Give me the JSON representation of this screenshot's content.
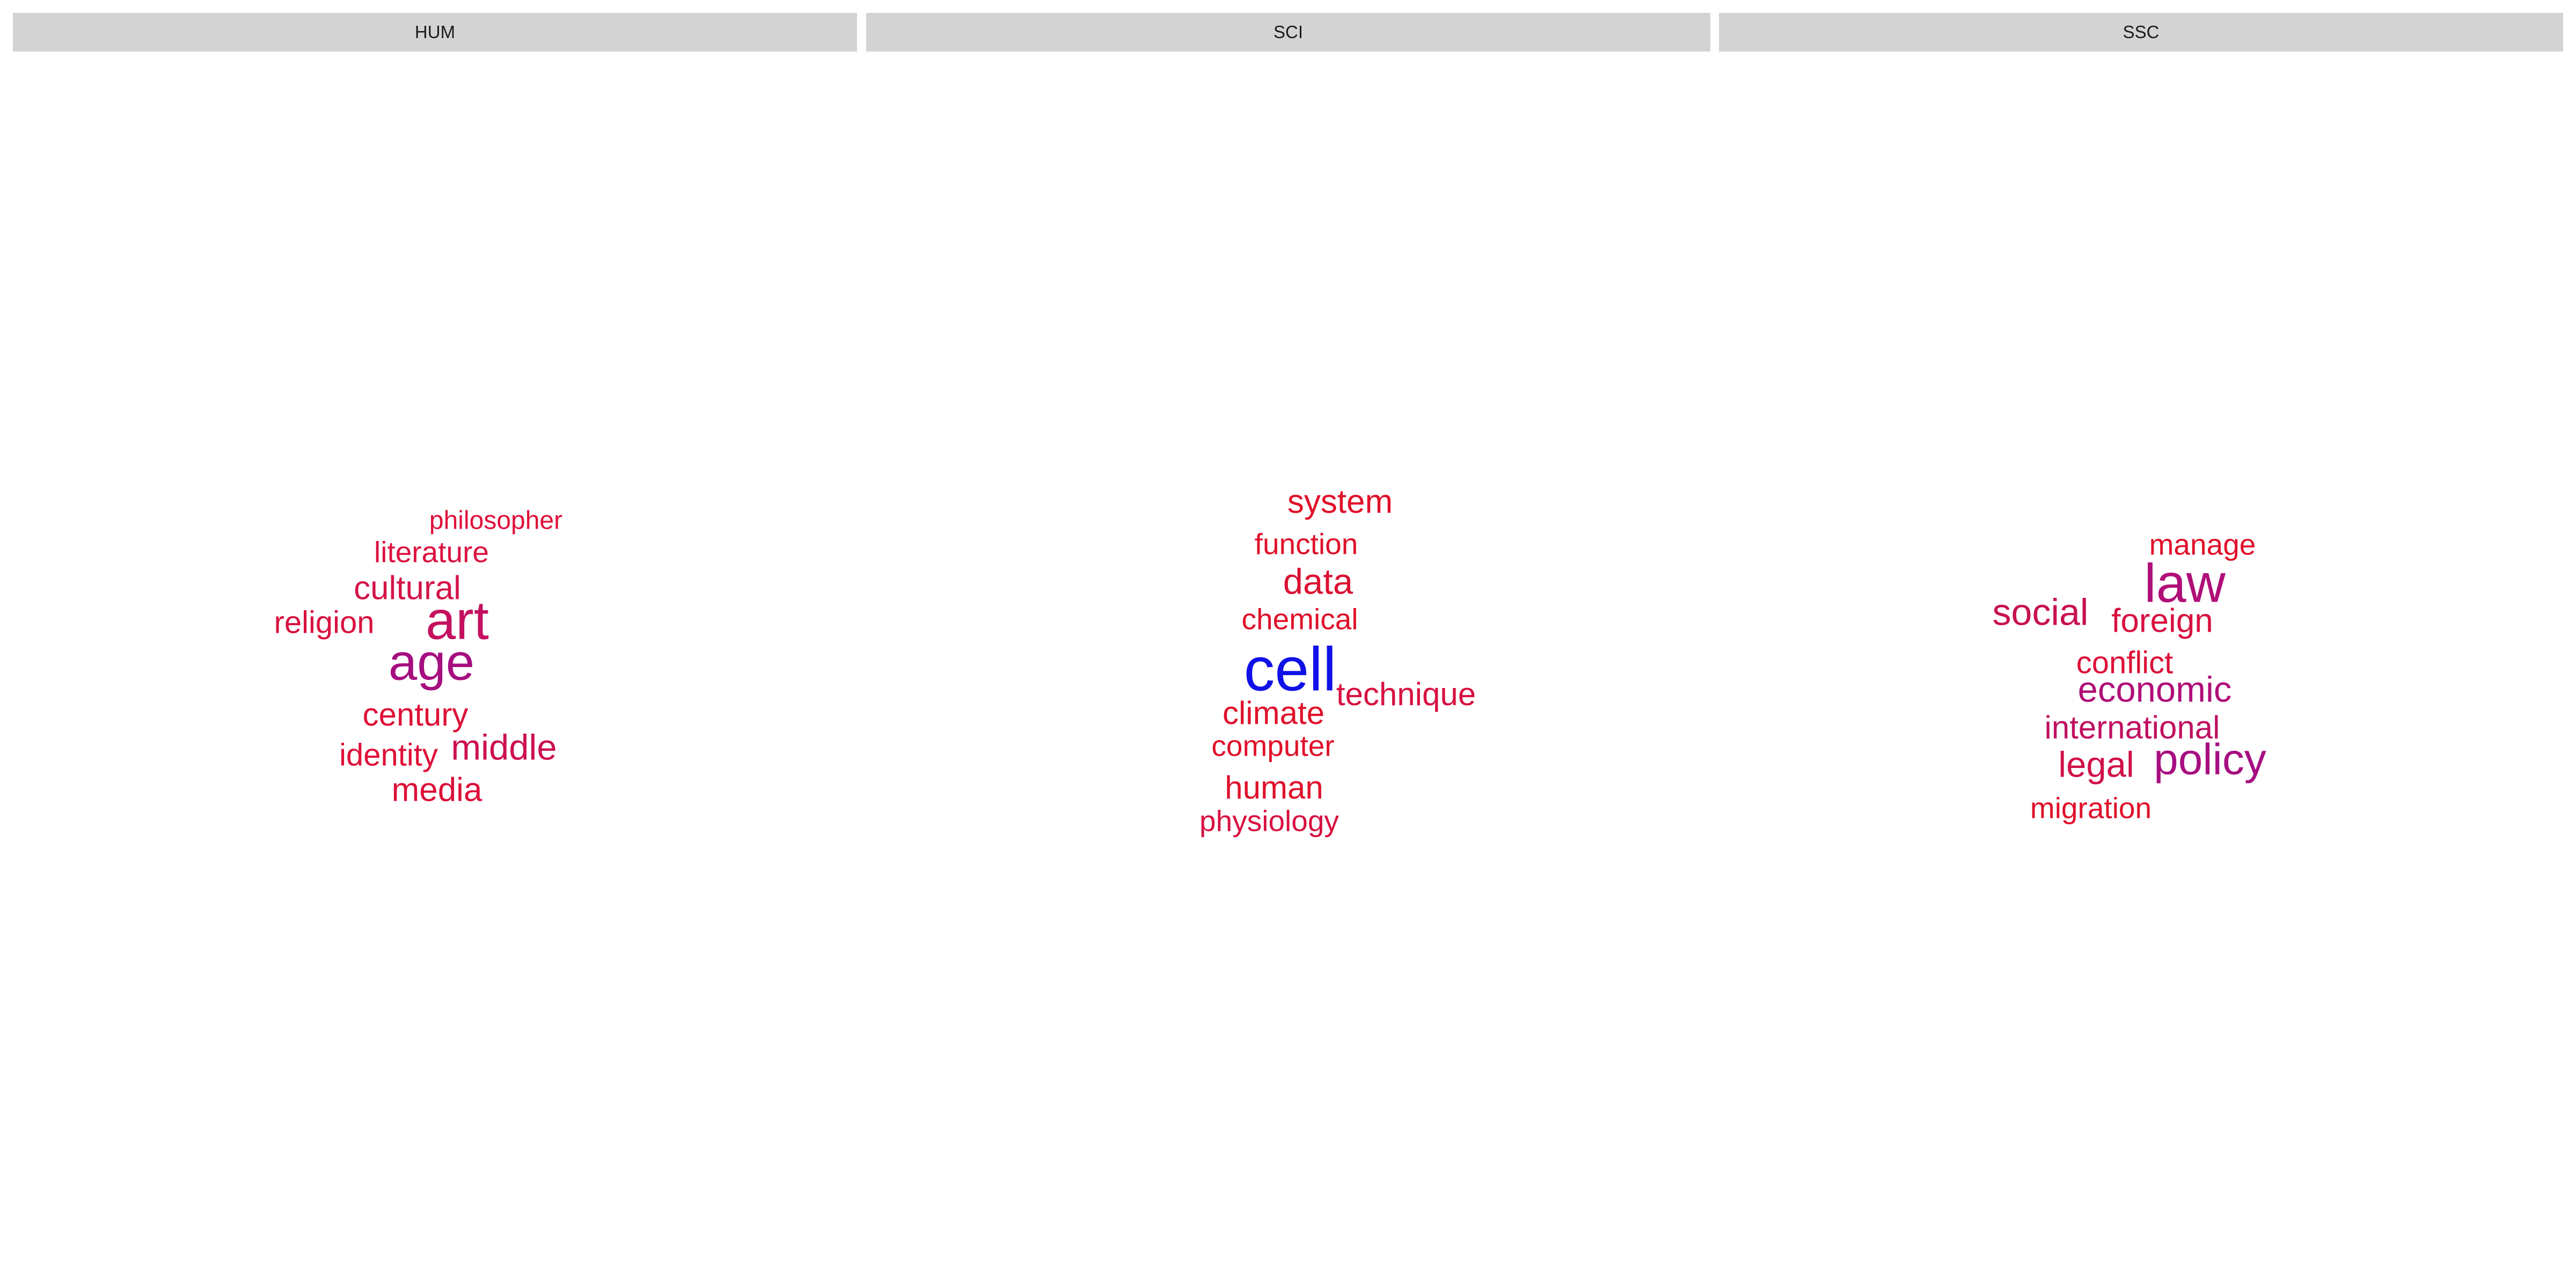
{
  "chart_data": [
    {
      "type": "wordcloud",
      "panel": "HUM",
      "words": [
        {
          "text": "philosopher",
          "weight": 2,
          "color": "#e0103a"
        },
        {
          "text": "literature",
          "weight": 2.3,
          "color": "#dc1240"
        },
        {
          "text": "cultural",
          "weight": 2.6,
          "color": "#d41448"
        },
        {
          "text": "religion",
          "weight": 2.4,
          "color": "#d8123f"
        },
        {
          "text": "art",
          "weight": 4.2,
          "color": "#c4105e"
        },
        {
          "text": "age",
          "weight": 4.0,
          "color": "#a60e80"
        },
        {
          "text": "century",
          "weight": 2.5,
          "color": "#dc1036"
        },
        {
          "text": "middle",
          "weight": 2.8,
          "color": "#cc1050"
        },
        {
          "text": "identity",
          "weight": 2.4,
          "color": "#de1038"
        },
        {
          "text": "media",
          "weight": 2.6,
          "color": "#dc1038"
        }
      ]
    },
    {
      "type": "wordcloud",
      "panel": "SCI",
      "words": [
        {
          "text": "system",
          "weight": 2.6,
          "color": "#e0102a"
        },
        {
          "text": "function",
          "weight": 2.3,
          "color": "#e0102a"
        },
        {
          "text": "data",
          "weight": 2.8,
          "color": "#dc1032"
        },
        {
          "text": "chemical",
          "weight": 2.3,
          "color": "#e0102a"
        },
        {
          "text": "cell",
          "weight": 4.8,
          "color": "#1010e8"
        },
        {
          "text": "technique",
          "weight": 2.5,
          "color": "#d81040"
        },
        {
          "text": "climate",
          "weight": 2.5,
          "color": "#e0102a"
        },
        {
          "text": "computer",
          "weight": 2.3,
          "color": "#e0102a"
        },
        {
          "text": "human",
          "weight": 2.5,
          "color": "#e0102a"
        },
        {
          "text": "physiology",
          "weight": 2.3,
          "color": "#d81040"
        }
      ]
    },
    {
      "type": "wordcloud",
      "panel": "SSC",
      "words": [
        {
          "text": "manage",
          "weight": 2.3,
          "color": "#e0102a"
        },
        {
          "text": "law",
          "weight": 4.2,
          "color": "#b00e78"
        },
        {
          "text": "social",
          "weight": 2.9,
          "color": "#c81052"
        },
        {
          "text": "foreign",
          "weight": 2.6,
          "color": "#d81040"
        },
        {
          "text": "conflict",
          "weight": 2.4,
          "color": "#dc1038"
        },
        {
          "text": "economic",
          "weight": 2.8,
          "color": "#b00e78"
        },
        {
          "text": "international",
          "weight": 2.5,
          "color": "#c01060"
        },
        {
          "text": "legal",
          "weight": 2.8,
          "color": "#d01048"
        },
        {
          "text": "policy",
          "weight": 3.4,
          "color": "#a60e80"
        },
        {
          "text": "migration",
          "weight": 2.3,
          "color": "#e0102a"
        }
      ]
    }
  ]
}
